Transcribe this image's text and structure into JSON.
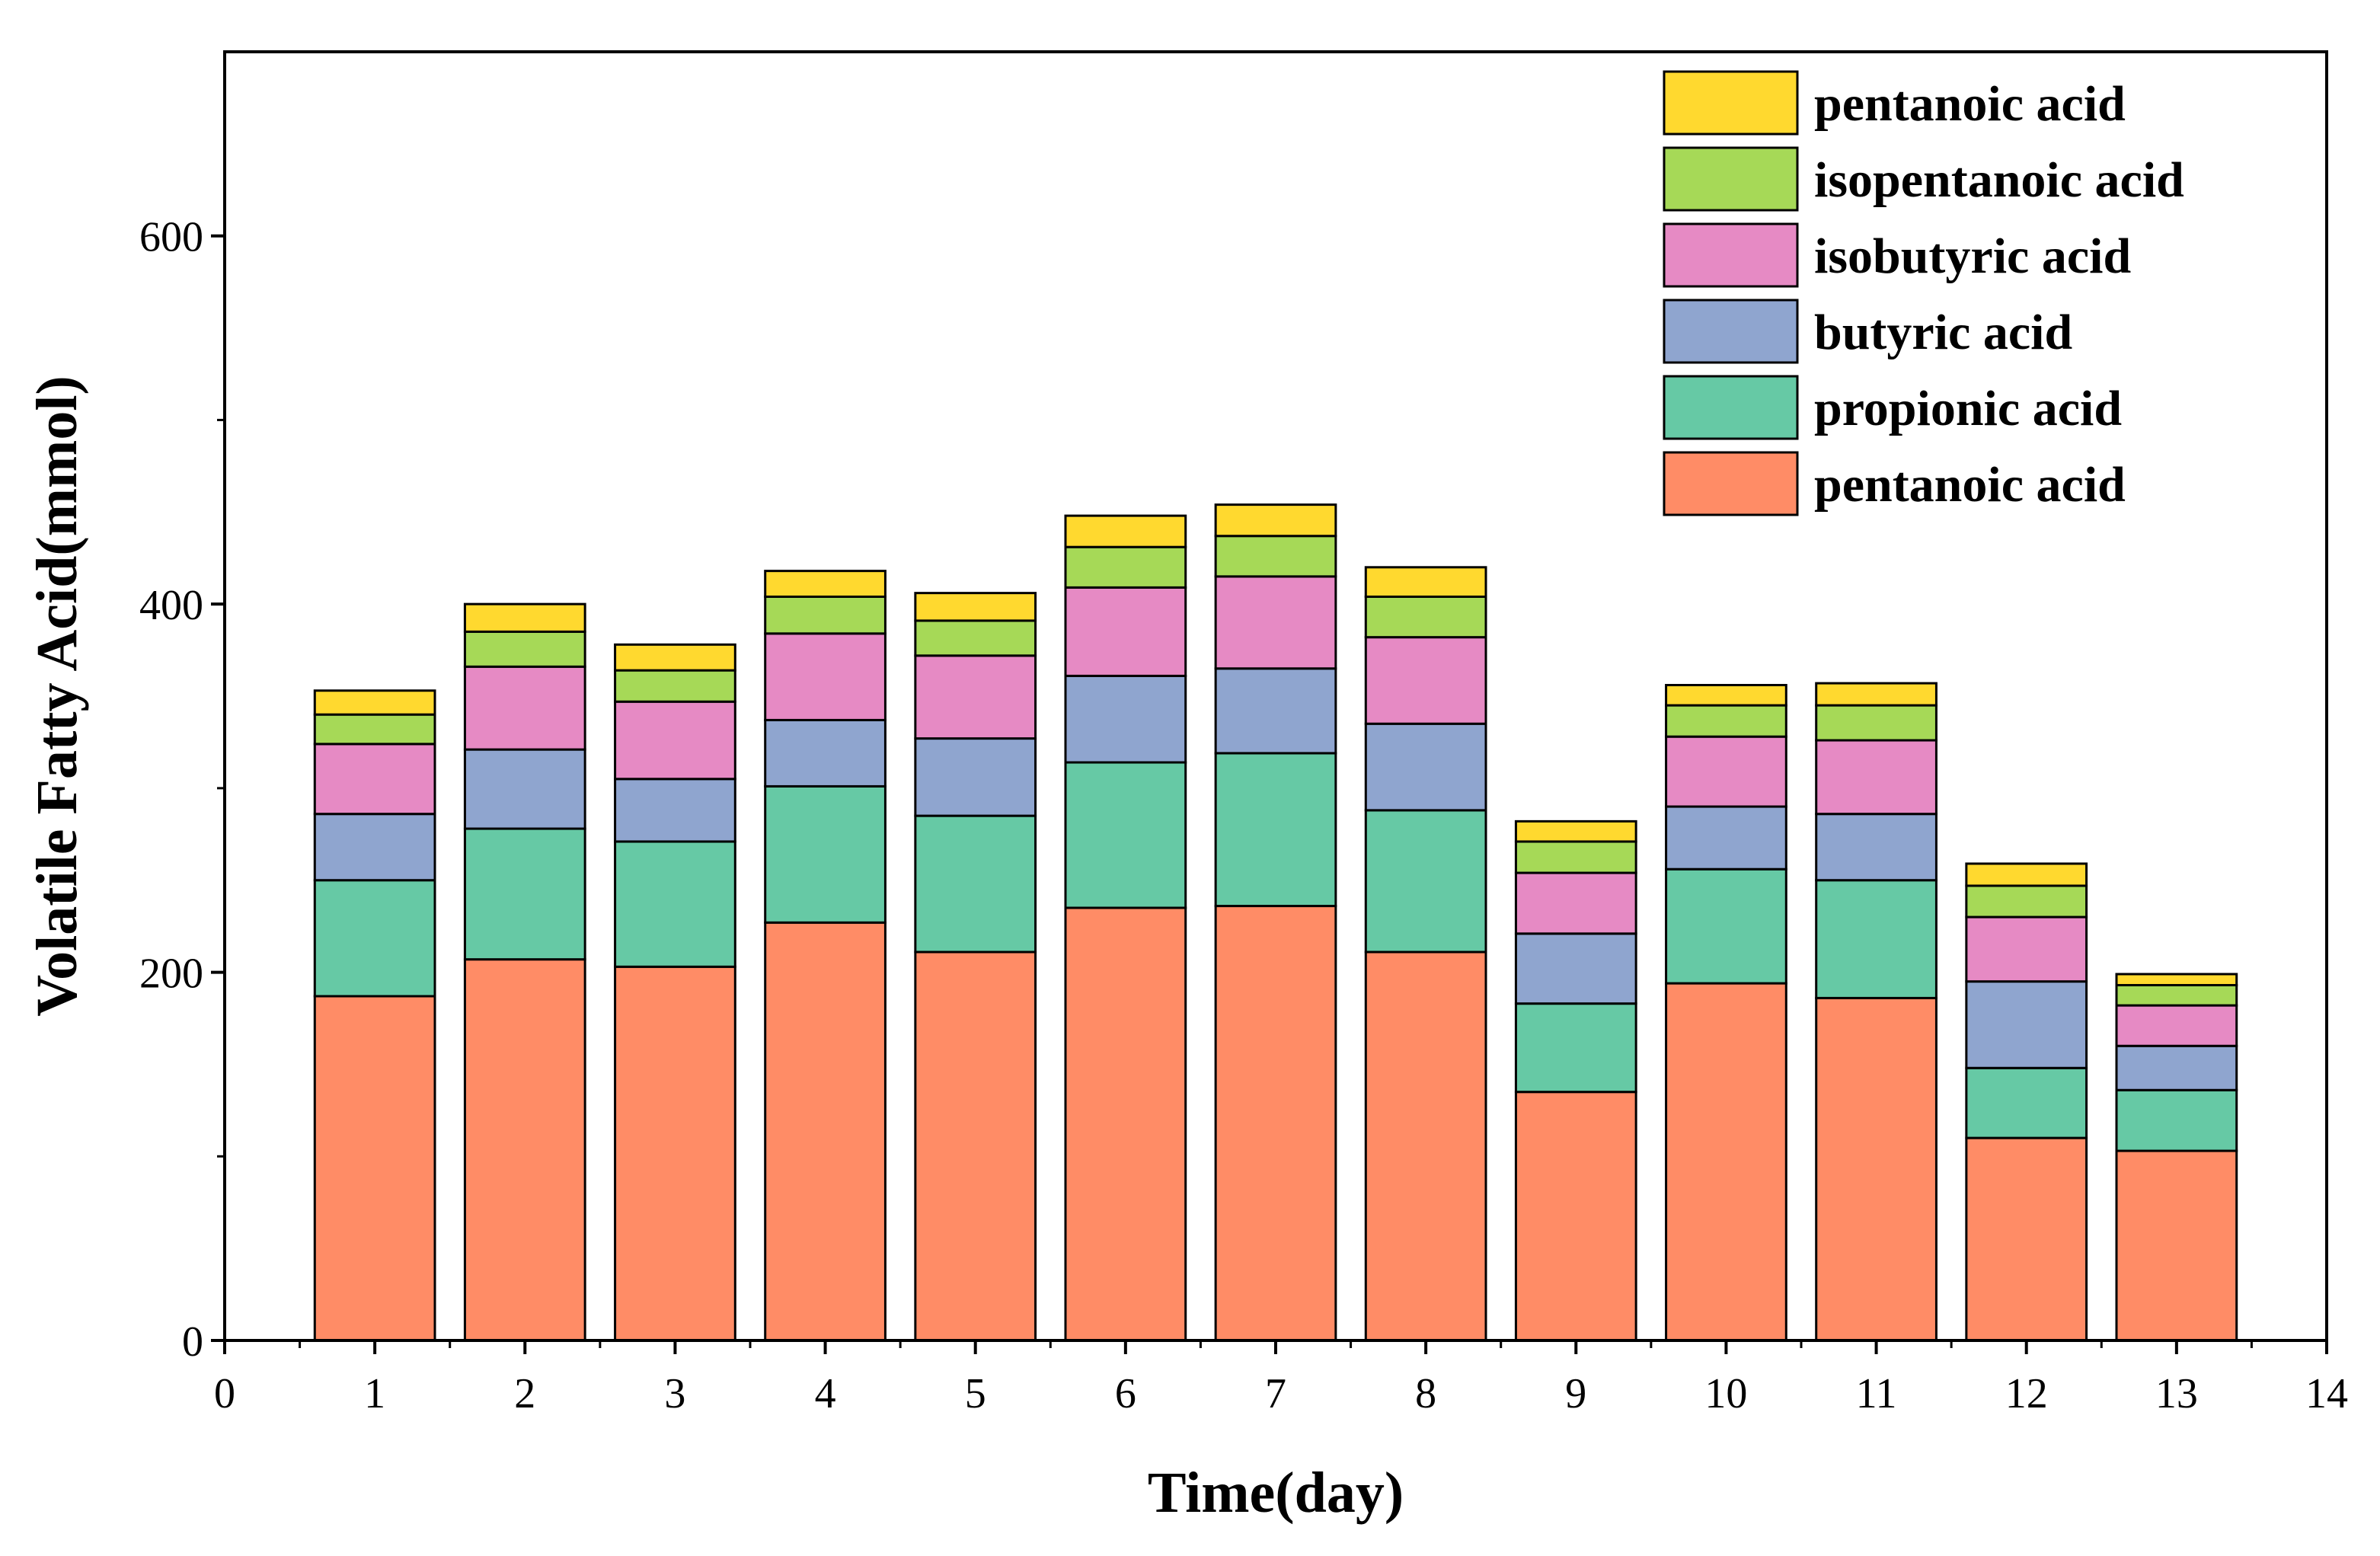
{
  "chart_data": {
    "type": "bar",
    "stacked": true,
    "title": "",
    "xlabel": "Time(day)",
    "ylabel": "Volatile Fatty Acid(mmol)",
    "xlim": [
      0,
      14
    ],
    "ylim": [
      0,
      700
    ],
    "x_ticks": [
      "0",
      "1",
      "2",
      "3",
      "4",
      "5",
      "6",
      "7",
      "8",
      "9",
      "10",
      "11",
      "12",
      "13",
      "14"
    ],
    "y_ticks": [
      "0",
      "200",
      "400",
      "600"
    ],
    "grid": false,
    "legend_position": "top-right",
    "categories": [
      "1",
      "2",
      "3",
      "4",
      "5",
      "6",
      "7",
      "8",
      "9",
      "10",
      "11",
      "12",
      "13"
    ],
    "series": [
      {
        "name": "pentanoic acid",
        "color": "#FF8C66",
        "values": [
          187,
          207,
          203,
          227,
          211,
          235,
          236,
          211,
          135,
          194,
          186,
          110,
          103
        ]
      },
      {
        "name": "propionic acid",
        "color": "#66C9A5",
        "values": [
          63,
          71,
          68,
          74,
          74,
          79,
          83,
          77,
          48,
          62,
          64,
          38,
          33
        ]
      },
      {
        "name": "butyric acid",
        "color": "#8FA5CF",
        "values": [
          36,
          43,
          34,
          36,
          42,
          47,
          46,
          47,
          38,
          34,
          36,
          47,
          24
        ]
      },
      {
        "name": "isobutyric acid",
        "color": "#E68AC4",
        "values": [
          38,
          45,
          42,
          47,
          45,
          48,
          50,
          47,
          33,
          38,
          40,
          35,
          22
        ]
      },
      {
        "name": "isopentanoic acid",
        "color": "#A6D957",
        "values": [
          16,
          19,
          17,
          20,
          19,
          22,
          22,
          22,
          17,
          17,
          19,
          17,
          11
        ]
      },
      {
        "name": "pentanoic acid",
        "color": "#FFD92F",
        "values": [
          13,
          15,
          14,
          14,
          15,
          17,
          17,
          16,
          11,
          11,
          12,
          12,
          6
        ]
      }
    ]
  }
}
